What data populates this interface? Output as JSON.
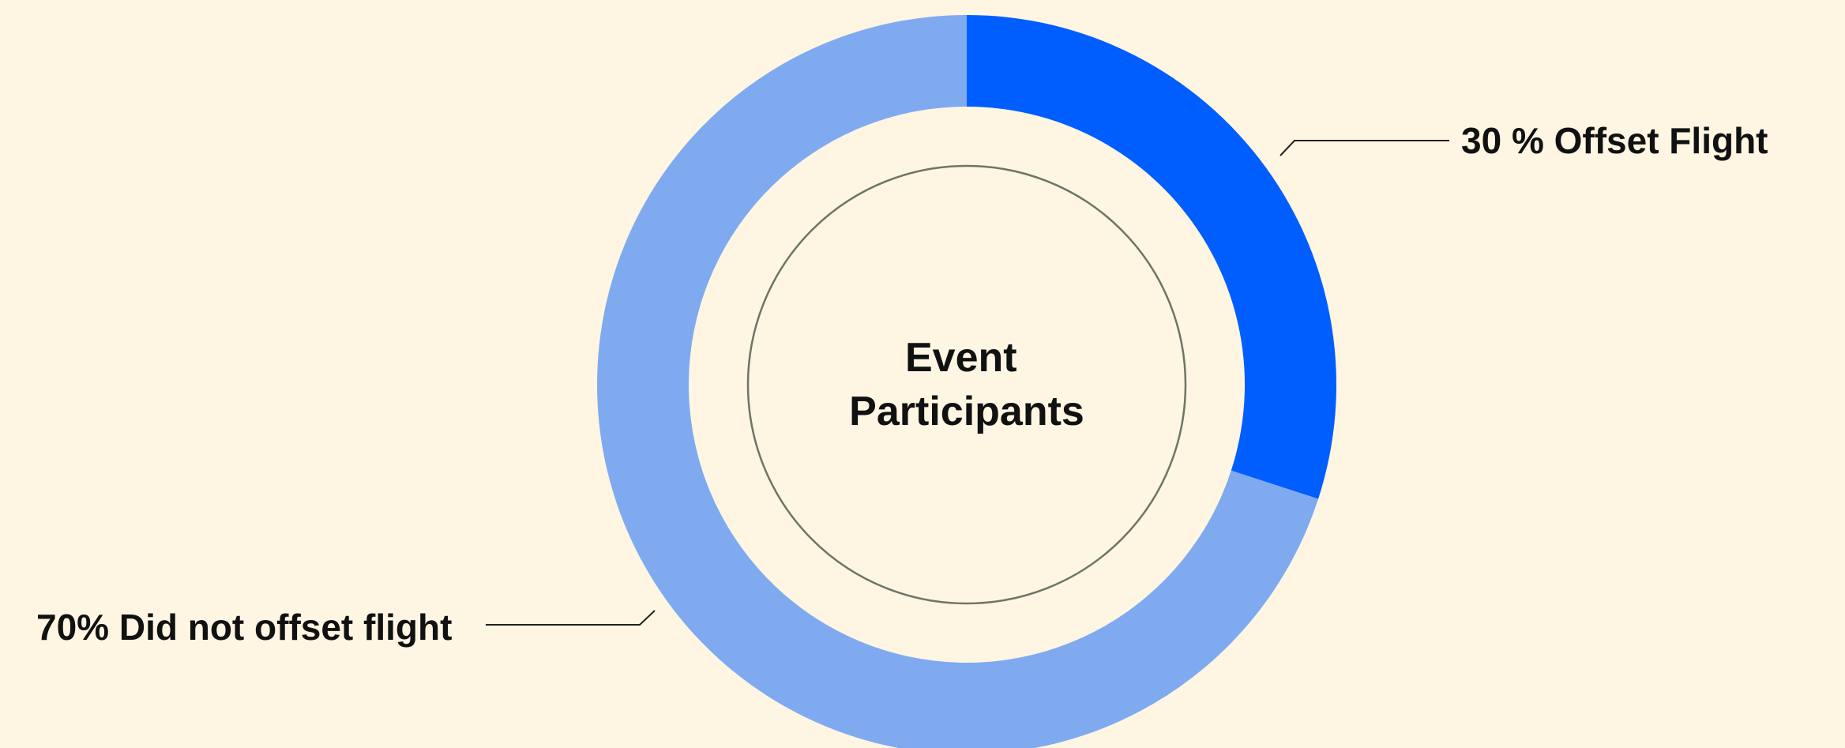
{
  "chart_data": {
    "type": "pie",
    "subtype": "donut",
    "center_title_lines": [
      "Event",
      "Participants"
    ],
    "slices": [
      {
        "label": "30 % Offset Flight",
        "value": 30,
        "color": "#005efe"
      },
      {
        "label": "70% Did not offset flight",
        "value": 70,
        "color": "#80aaf0"
      }
    ],
    "legend": "none",
    "background": "#fef6e3",
    "inner_ring_color": "#6e7566"
  }
}
